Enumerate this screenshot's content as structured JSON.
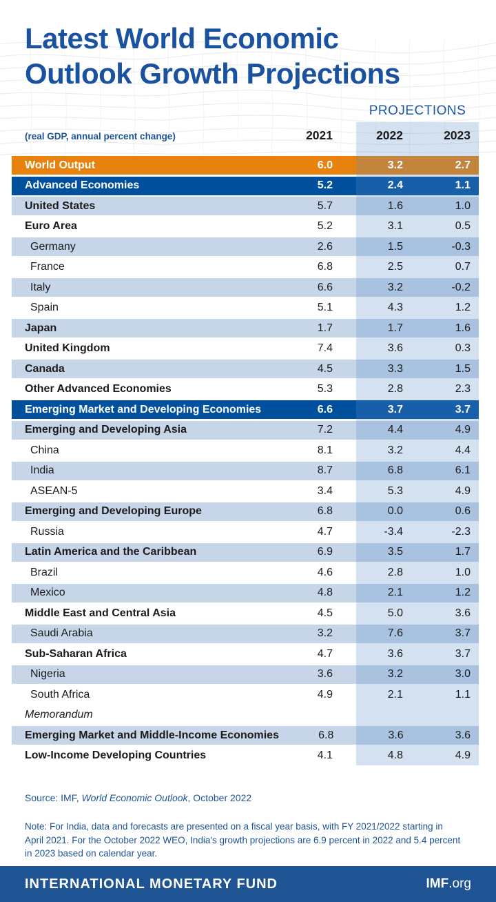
{
  "colors": {
    "title_blue": "#1A52A0",
    "text_blue": "#1C5394",
    "world_row_orange": "#E8820F",
    "group_row_blue": "#00509E",
    "alt_row_light_blue": "#C6D5E8",
    "projections_band": "rgba(88,138,196,0.26)",
    "footer_blue": "#1E5394",
    "value_text": "#1B1B1B"
  },
  "header": {
    "title_line1": "Latest World Economic",
    "title_line2": "Outlook Growth Projections",
    "projections_label": "PROJECTIONS",
    "unit_label": "(real GDP, annual percent change)"
  },
  "chart_data": {
    "type": "table",
    "title": "Latest World Economic Outlook Growth Projections",
    "subtitle": "(real GDP, annual percent change)",
    "columns": [
      "2021",
      "2022",
      "2023"
    ],
    "projection_columns": [
      "2022",
      "2023"
    ],
    "rows": [
      {
        "label": "World Output",
        "type": "world",
        "shade": "orange",
        "values": [
          "6.0",
          "3.2",
          "2.7"
        ]
      },
      {
        "label": "Advanced Economies",
        "type": "group",
        "shade": "blue",
        "values": [
          "5.2",
          "2.4",
          "1.1"
        ]
      },
      {
        "label": "United States",
        "type": "region",
        "shade": "light",
        "values": [
          "5.7",
          "1.6",
          "1.0"
        ]
      },
      {
        "label": "Euro Area",
        "type": "region",
        "shade": "white",
        "values": [
          "5.2",
          "3.1",
          "0.5"
        ]
      },
      {
        "label": "Germany",
        "type": "country",
        "shade": "light",
        "values": [
          "2.6",
          "1.5",
          "-0.3"
        ]
      },
      {
        "label": "France",
        "type": "country",
        "shade": "white",
        "values": [
          "6.8",
          "2.5",
          "0.7"
        ]
      },
      {
        "label": "Italy",
        "type": "country",
        "shade": "light",
        "values": [
          "6.6",
          "3.2",
          "-0.2"
        ]
      },
      {
        "label": "Spain",
        "type": "country",
        "shade": "white",
        "values": [
          "5.1",
          "4.3",
          "1.2"
        ]
      },
      {
        "label": "Japan",
        "type": "region",
        "shade": "light",
        "values": [
          "1.7",
          "1.7",
          "1.6"
        ]
      },
      {
        "label": "United Kingdom",
        "type": "region",
        "shade": "white",
        "values": [
          "7.4",
          "3.6",
          "0.3"
        ]
      },
      {
        "label": "Canada",
        "type": "region",
        "shade": "light",
        "values": [
          "4.5",
          "3.3",
          "1.5"
        ]
      },
      {
        "label": "Other Advanced Economies",
        "type": "region",
        "shade": "white",
        "values": [
          "5.3",
          "2.8",
          "2.3"
        ]
      },
      {
        "label": "Emerging Market and Developing Economies",
        "type": "group",
        "shade": "blue",
        "values": [
          "6.6",
          "3.7",
          "3.7"
        ]
      },
      {
        "label": "Emerging and Developing Asia",
        "type": "region",
        "shade": "light",
        "values": [
          "7.2",
          "4.4",
          "4.9"
        ]
      },
      {
        "label": "China",
        "type": "country",
        "shade": "white",
        "values": [
          "8.1",
          "3.2",
          "4.4"
        ]
      },
      {
        "label": "India",
        "type": "country",
        "shade": "light",
        "values": [
          "8.7",
          "6.8",
          "6.1"
        ]
      },
      {
        "label": "ASEAN-5",
        "type": "country",
        "shade": "white",
        "values": [
          "3.4",
          "5.3",
          "4.9"
        ]
      },
      {
        "label": "Emerging and Developing Europe",
        "type": "region",
        "shade": "light",
        "values": [
          "6.8",
          "0.0",
          "0.6"
        ]
      },
      {
        "label": "Russia",
        "type": "country",
        "shade": "white",
        "values": [
          "4.7",
          "-3.4",
          "-2.3"
        ]
      },
      {
        "label": "Latin America and the Caribbean",
        "type": "region",
        "shade": "light",
        "values": [
          "6.9",
          "3.5",
          "1.7"
        ]
      },
      {
        "label": "Brazil",
        "type": "country",
        "shade": "white",
        "values": [
          "4.6",
          "2.8",
          "1.0"
        ]
      },
      {
        "label": "Mexico",
        "type": "country",
        "shade": "light",
        "values": [
          "4.8",
          "2.1",
          "1.2"
        ]
      },
      {
        "label": "Middle East and Central Asia",
        "type": "region",
        "shade": "white",
        "values": [
          "4.5",
          "5.0",
          "3.6"
        ]
      },
      {
        "label": "Saudi Arabia",
        "type": "country",
        "shade": "light",
        "values": [
          "3.2",
          "7.6",
          "3.7"
        ]
      },
      {
        "label": "Sub-Saharan Africa",
        "type": "region",
        "shade": "white",
        "values": [
          "4.7",
          "3.6",
          "3.7"
        ]
      },
      {
        "label": "Nigeria",
        "type": "country",
        "shade": "light",
        "values": [
          "3.6",
          "3.2",
          "3.0"
        ]
      },
      {
        "label": "South Africa",
        "type": "country",
        "shade": "white",
        "values": [
          "4.9",
          "2.1",
          "1.1"
        ]
      },
      {
        "label": "Memorandum",
        "type": "memo",
        "shade": "none",
        "values": [
          "",
          "",
          ""
        ]
      },
      {
        "label": "Emerging Market and Middle-Income Economies",
        "type": "region",
        "shade": "light",
        "values": [
          "6.8",
          "3.6",
          "3.6"
        ]
      },
      {
        "label": "Low-Income Developing Countries",
        "type": "region",
        "shade": "white",
        "values": [
          "4.1",
          "4.8",
          "4.9"
        ]
      }
    ]
  },
  "source": {
    "prefix": "Source: IMF, ",
    "italic": "World Economic Outlook",
    "suffix": ", October 2022"
  },
  "note_lines": [
    "Note: For India, data and forecasts are presented on a fiscal year basis, with FY 2021/2022 starting in",
    "April 2021. For the October 2022 WEO, India's growth projections are 6.9 percent in 2022 and 5.4 percent",
    "in 2023 based on calendar year."
  ],
  "footer": {
    "org_name": "INTERNATIONAL MONETARY FUND",
    "site_bold": "IMF",
    "site_rest": ".org"
  }
}
